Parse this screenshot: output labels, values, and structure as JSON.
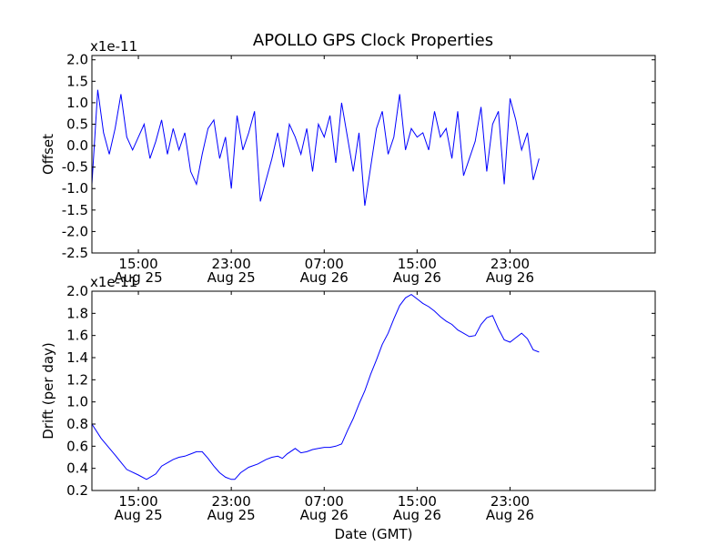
{
  "figure": {
    "title": "APOLLO GPS Clock Properties"
  },
  "chart_data": [
    {
      "type": "line",
      "ylabel": "Offset",
      "xlabel": "",
      "multiplier": "x1e-11",
      "ylim": [
        -2.5,
        2.1
      ],
      "xlim": [
        11.0,
        59.5
      ],
      "xticks": [
        {
          "x": 15,
          "line1": "15:00",
          "line2": "Aug 25"
        },
        {
          "x": 23,
          "line1": "23:00",
          "line2": "Aug 25"
        },
        {
          "x": 31,
          "line1": "07:00",
          "line2": "Aug 26"
        },
        {
          "x": 39,
          "line1": "15:00",
          "line2": "Aug 26"
        },
        {
          "x": 47,
          "line1": "23:00",
          "line2": "Aug 26"
        }
      ],
      "yticks": [
        {
          "v": -2.5,
          "label": "-2.5"
        },
        {
          "v": -2.0,
          "label": "-2.0"
        },
        {
          "v": -1.5,
          "label": "-1.5"
        },
        {
          "v": -1.0,
          "label": "-1.0"
        },
        {
          "v": -0.5,
          "label": "-0.5"
        },
        {
          "v": 0.0,
          "label": "0.0"
        },
        {
          "v": 0.5,
          "label": "0.5"
        },
        {
          "v": 1.0,
          "label": "1.0"
        },
        {
          "v": 1.5,
          "label": "1.5"
        },
        {
          "v": 2.0,
          "label": "2.0"
        }
      ],
      "line_color": "#0000ff",
      "series": [
        {
          "x": [
            11.0,
            11.5,
            12.0,
            12.5,
            13.0,
            13.5,
            14.0,
            14.5,
            15.0,
            15.5,
            16.0,
            16.5,
            17.0,
            17.5,
            18.0,
            18.5,
            19.0,
            19.5,
            20.0,
            20.5,
            21.0,
            21.5,
            22.0,
            22.5,
            23.0,
            23.5,
            24.0,
            24.5,
            25.0,
            25.5,
            26.0,
            26.5,
            27.0,
            27.5,
            28.0,
            28.5,
            29.0,
            29.5,
            30.0,
            30.5,
            31.0,
            31.5,
            32.0,
            32.5,
            33.0,
            33.5,
            34.0,
            34.5,
            35.0,
            35.5,
            36.0,
            36.5,
            37.0,
            37.5,
            38.0,
            38.5,
            39.0,
            39.5,
            40.0,
            40.5,
            41.0,
            41.5,
            42.0,
            42.5,
            43.0,
            43.5,
            44.0,
            44.5,
            45.0,
            45.5,
            46.0,
            46.5,
            47.0,
            47.5,
            48.0,
            48.5,
            49.0,
            49.5
          ],
          "values": [
            -0.9,
            1.3,
            0.3,
            -0.2,
            0.4,
            1.2,
            0.2,
            -0.1,
            0.2,
            0.5,
            -0.3,
            0.1,
            0.6,
            -0.2,
            0.4,
            -0.1,
            0.3,
            -0.6,
            -0.9,
            -0.2,
            0.4,
            0.6,
            -0.3,
            0.2,
            -1.0,
            0.7,
            -0.1,
            0.3,
            0.8,
            -1.3,
            -0.8,
            -0.3,
            0.3,
            -0.5,
            0.5,
            0.2,
            -0.2,
            0.4,
            -0.6,
            0.5,
            0.2,
            0.7,
            -0.4,
            1.0,
            0.2,
            -0.6,
            0.3,
            -1.4,
            -0.5,
            0.4,
            0.8,
            -0.2,
            0.2,
            1.2,
            -0.1,
            0.4,
            0.2,
            0.3,
            -0.1,
            0.8,
            0.2,
            0.4,
            -0.3,
            0.8,
            -0.7,
            -0.3,
            0.1,
            0.9,
            -0.6,
            0.5,
            0.8,
            -0.9,
            1.1,
            0.6,
            -0.1,
            0.3,
            -0.8,
            -0.3
          ]
        }
      ]
    },
    {
      "type": "line",
      "ylabel": "Drift (per day)",
      "xlabel": "Date (GMT)",
      "multiplier": "x1e-11",
      "ylim": [
        0.2,
        2.0
      ],
      "xlim": [
        11.0,
        59.5
      ],
      "xticks": [
        {
          "x": 15,
          "line1": "15:00",
          "line2": "Aug 25"
        },
        {
          "x": 23,
          "line1": "23:00",
          "line2": "Aug 25"
        },
        {
          "x": 31,
          "line1": "07:00",
          "line2": "Aug 26"
        },
        {
          "x": 39,
          "line1": "15:00",
          "line2": "Aug 26"
        },
        {
          "x": 47,
          "line1": "23:00",
          "line2": "Aug 26"
        }
      ],
      "yticks": [
        {
          "v": 0.2,
          "label": "0.2"
        },
        {
          "v": 0.4,
          "label": "0.4"
        },
        {
          "v": 0.6,
          "label": "0.6"
        },
        {
          "v": 0.8,
          "label": "0.8"
        },
        {
          "v": 1.0,
          "label": "1.0"
        },
        {
          "v": 1.2,
          "label": "1.2"
        },
        {
          "v": 1.4,
          "label": "1.4"
        },
        {
          "v": 1.6,
          "label": "1.6"
        },
        {
          "v": 1.8,
          "label": "1.8"
        },
        {
          "v": 2.0,
          "label": "2.0"
        }
      ],
      "line_color": "#0000ff",
      "series": [
        {
          "x": [
            11.0,
            11.8,
            13.0,
            14.0,
            15.0,
            15.7,
            16.5,
            17.0,
            17.5,
            18.0,
            18.5,
            19.0,
            19.5,
            20.0,
            20.5,
            21.0,
            21.5,
            22.0,
            22.5,
            23.0,
            23.3,
            23.8,
            24.5,
            25.3,
            26.0,
            26.5,
            27.0,
            27.4,
            27.8,
            28.5,
            29.0,
            29.5,
            30.0,
            30.5,
            31.0,
            31.5,
            32.0,
            32.5,
            33.0,
            33.5,
            34.0,
            34.5,
            35.0,
            35.5,
            36.0,
            36.5,
            37.0,
            37.5,
            38.0,
            38.5,
            39.0,
            39.5,
            40.0,
            40.5,
            41.0,
            41.5,
            42.0,
            42.5,
            43.0,
            43.5,
            44.0,
            44.5,
            45.0,
            45.5,
            46.0,
            46.5,
            47.0,
            47.5,
            48.0,
            48.5,
            49.0,
            49.5
          ],
          "values": [
            0.8,
            0.67,
            0.52,
            0.39,
            0.34,
            0.3,
            0.35,
            0.42,
            0.45,
            0.48,
            0.5,
            0.51,
            0.53,
            0.55,
            0.55,
            0.49,
            0.42,
            0.36,
            0.32,
            0.3,
            0.3,
            0.36,
            0.41,
            0.44,
            0.48,
            0.5,
            0.51,
            0.49,
            0.53,
            0.58,
            0.54,
            0.55,
            0.57,
            0.58,
            0.59,
            0.59,
            0.6,
            0.62,
            0.74,
            0.85,
            0.98,
            1.1,
            1.25,
            1.38,
            1.52,
            1.62,
            1.75,
            1.87,
            1.94,
            1.97,
            1.93,
            1.89,
            1.86,
            1.82,
            1.77,
            1.73,
            1.7,
            1.65,
            1.62,
            1.59,
            1.6,
            1.7,
            1.76,
            1.78,
            1.66,
            1.56,
            1.54,
            1.58,
            1.62,
            1.57,
            1.47,
            1.45
          ]
        }
      ]
    }
  ]
}
